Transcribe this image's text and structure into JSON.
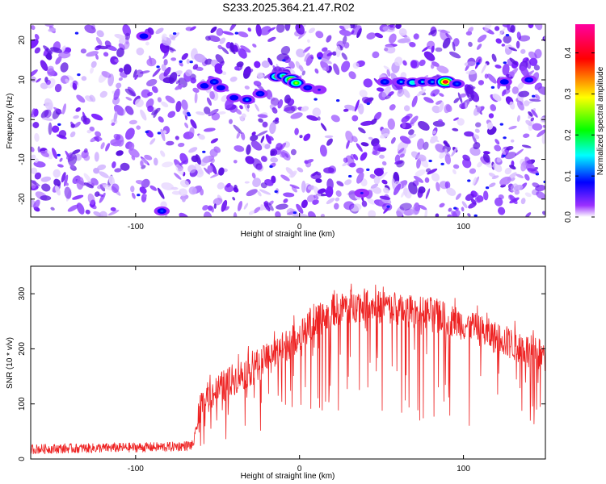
{
  "title": "S233.2025.364.21.47.R02",
  "colors": {
    "background": "#ffffff",
    "snr_line": "#ee2222",
    "axis": "#000000",
    "colormap": [
      "#ffffff",
      "#8000ff",
      "#0000ff",
      "#00ffff",
      "#00ff00",
      "#ffff00",
      "#ff0000",
      "#ff00a0"
    ]
  },
  "chart_data": [
    {
      "type": "heatmap",
      "xlabel": "Height of straight line (km)",
      "ylabel": "Frequency (Hz)",
      "xlim": [
        -164,
        150
      ],
      "ylim": [
        -24.5,
        24
      ],
      "x_ticks": [
        -100,
        0,
        100
      ],
      "y_ticks": [
        -20,
        -10,
        0,
        10,
        20
      ],
      "colorbar": {
        "label": "Normalized spectral amplitude",
        "range": [
          0,
          0.47
        ],
        "ticks": [
          0.0,
          0.1,
          0.2,
          0.3,
          0.4
        ]
      },
      "features": [
        {
          "x": -58,
          "y": 8.5,
          "amplitude": 0.08
        },
        {
          "x": -52,
          "y": 9.5,
          "amplitude": 0.1
        },
        {
          "x": -48,
          "y": 8.0,
          "amplitude": 0.08
        },
        {
          "x": -40,
          "y": 5.5,
          "amplitude": 0.08
        },
        {
          "x": -32,
          "y": 5.0,
          "amplitude": 0.12
        },
        {
          "x": -24,
          "y": 6.5,
          "amplitude": 0.09
        },
        {
          "x": -14,
          "y": 10.8,
          "amplitude": 0.22
        },
        {
          "x": -10,
          "y": 11.0,
          "amplitude": 0.2
        },
        {
          "x": -5,
          "y": 10.0,
          "amplitude": 0.35
        },
        {
          "x": -2,
          "y": 9.2,
          "amplitude": 0.26
        },
        {
          "x": 5,
          "y": 8.0,
          "amplitude": 0.09
        },
        {
          "x": 12,
          "y": 7.5,
          "amplitude": 0.07
        },
        {
          "x": 52,
          "y": 9.5,
          "amplitude": 0.1
        },
        {
          "x": 62,
          "y": 9.5,
          "amplitude": 0.13
        },
        {
          "x": 69,
          "y": 9.3,
          "amplitude": 0.16
        },
        {
          "x": 75,
          "y": 9.5,
          "amplitude": 0.14
        },
        {
          "x": 81,
          "y": 9.5,
          "amplitude": 0.12
        },
        {
          "x": 89,
          "y": 9.5,
          "amplitude": 0.42
        },
        {
          "x": 96,
          "y": 9.0,
          "amplitude": 0.1
        },
        {
          "x": 125,
          "y": 9.5,
          "amplitude": 0.08
        },
        {
          "x": 140,
          "y": 10.0,
          "amplitude": 0.09
        },
        {
          "x": -84,
          "y": -23.0,
          "amplitude": 0.1
        },
        {
          "x": 38,
          "y": -18.5,
          "amplitude": 0.07
        },
        {
          "x": -95,
          "y": 21.0,
          "amplitude": 0.08
        }
      ]
    },
    {
      "type": "line",
      "xlabel": "Height of straight line (km)",
      "ylabel": "SNR (10 * v/v)",
      "xlim": [
        -164,
        150
      ],
      "ylim": [
        0,
        350
      ],
      "x_ticks": [
        -100,
        0,
        100
      ],
      "y_ticks": [
        0,
        100,
        200,
        300
      ],
      "envelope": {
        "x": [
          -164,
          -120,
          -80,
          -65,
          -60,
          -55,
          -40,
          -20,
          0,
          20,
          40,
          60,
          80,
          100,
          120,
          150
        ],
        "y": [
          18,
          20,
          22,
          25,
          95,
          115,
          145,
          180,
          225,
          270,
          280,
          270,
          265,
          245,
          220,
          185
        ]
      }
    }
  ]
}
